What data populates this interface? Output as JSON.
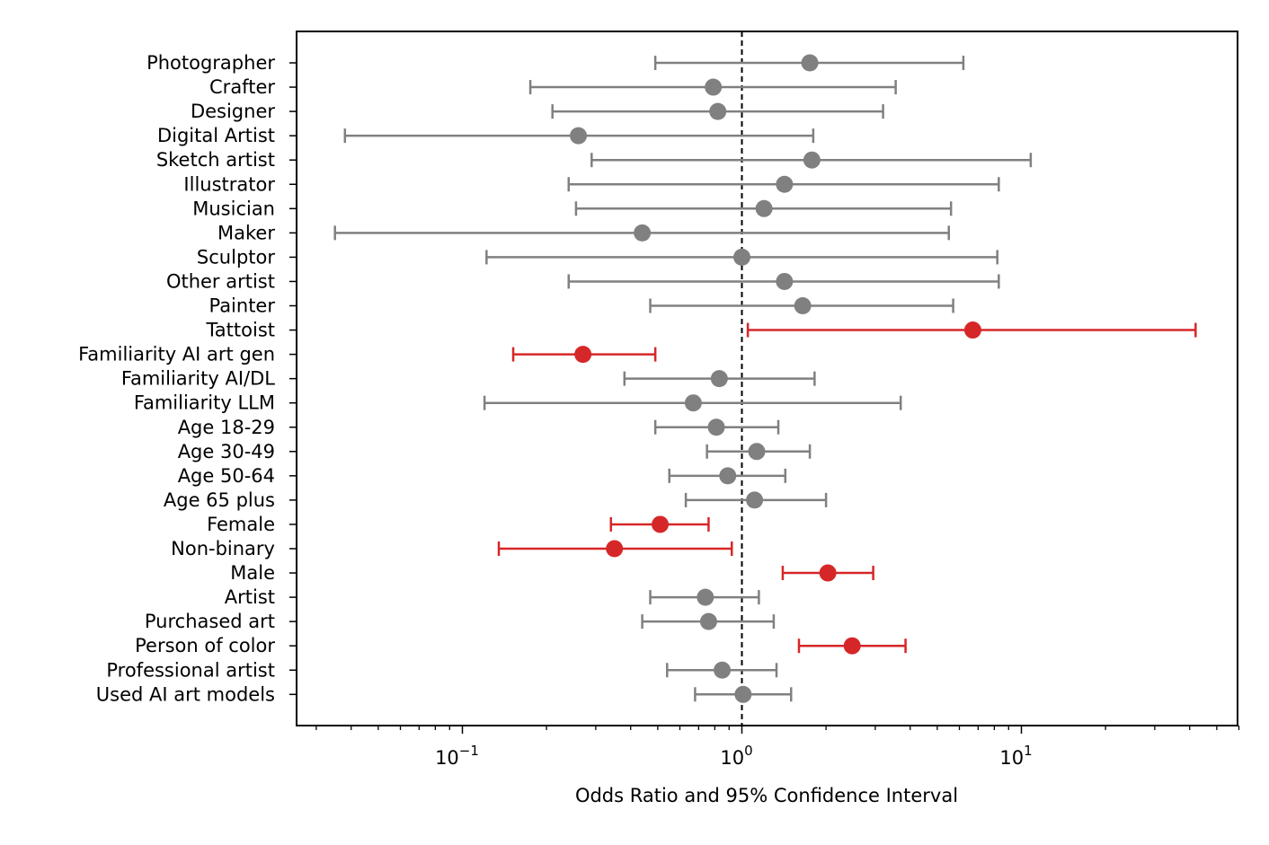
{
  "chart_data": {
    "type": "forest",
    "xlabel": "Odds Ratio and 95% Confidence Interval",
    "xscale": "log",
    "xlim": [
      0.025,
      60
    ],
    "x_ticks": [
      {
        "value": 0.1,
        "base": "10",
        "exp": "−1"
      },
      {
        "value": 1,
        "base": "10",
        "exp": "0"
      },
      {
        "value": 10,
        "base": "10",
        "exp": "1"
      }
    ],
    "reference_line": 1,
    "colors": {
      "not_significant": "#808080",
      "significant": "#d62728"
    },
    "rows": [
      {
        "label": "Photographer",
        "or": 1.75,
        "lo": 0.49,
        "hi": 6.2,
        "significant": false
      },
      {
        "label": "Crafter",
        "or": 0.79,
        "lo": 0.175,
        "hi": 3.55,
        "significant": false
      },
      {
        "label": "Designer",
        "or": 0.82,
        "lo": 0.21,
        "hi": 3.2,
        "significant": false
      },
      {
        "label": "Digital Artist",
        "or": 0.26,
        "lo": 0.038,
        "hi": 1.8,
        "significant": false
      },
      {
        "label": "Sketch artist",
        "or": 1.78,
        "lo": 0.29,
        "hi": 10.8,
        "significant": false
      },
      {
        "label": "Illustrator",
        "or": 1.42,
        "lo": 0.24,
        "hi": 8.3,
        "significant": false
      },
      {
        "label": "Musician",
        "or": 1.2,
        "lo": 0.255,
        "hi": 5.6,
        "significant": false
      },
      {
        "label": "Maker",
        "or": 0.44,
        "lo": 0.035,
        "hi": 5.5,
        "significant": false
      },
      {
        "label": "Sculptor",
        "or": 1.0,
        "lo": 0.122,
        "hi": 8.2,
        "significant": false
      },
      {
        "label": "Other artist",
        "or": 1.42,
        "lo": 0.24,
        "hi": 8.3,
        "significant": false
      },
      {
        "label": "Painter",
        "or": 1.65,
        "lo": 0.47,
        "hi": 5.7,
        "significant": false
      },
      {
        "label": "Tattoist",
        "or": 6.7,
        "lo": 1.05,
        "hi": 42,
        "significant": true
      },
      {
        "label": "Familiarity AI art gen",
        "or": 0.27,
        "lo": 0.152,
        "hi": 0.49,
        "significant": true
      },
      {
        "label": "Familiarity AI/DL",
        "or": 0.83,
        "lo": 0.38,
        "hi": 1.82,
        "significant": false
      },
      {
        "label": "Familiarity LLM",
        "or": 0.67,
        "lo": 0.12,
        "hi": 3.7,
        "significant": false
      },
      {
        "label": "Age 18-29",
        "or": 0.81,
        "lo": 0.49,
        "hi": 1.35,
        "significant": false
      },
      {
        "label": "Age 30-49",
        "or": 1.13,
        "lo": 0.75,
        "hi": 1.75,
        "significant": false
      },
      {
        "label": "Age 50-64",
        "or": 0.89,
        "lo": 0.55,
        "hi": 1.43,
        "significant": false
      },
      {
        "label": "Age 65 plus",
        "or": 1.11,
        "lo": 0.63,
        "hi": 2.0,
        "significant": false
      },
      {
        "label": "Female",
        "or": 0.51,
        "lo": 0.34,
        "hi": 0.76,
        "significant": true
      },
      {
        "label": "Non-binary",
        "or": 0.35,
        "lo": 0.135,
        "hi": 0.92,
        "significant": true
      },
      {
        "label": "Male",
        "or": 2.03,
        "lo": 1.4,
        "hi": 2.95,
        "significant": true
      },
      {
        "label": "Artist",
        "or": 0.74,
        "lo": 0.47,
        "hi": 1.15,
        "significant": false
      },
      {
        "label": "Purchased art",
        "or": 0.76,
        "lo": 0.44,
        "hi": 1.3,
        "significant": false
      },
      {
        "label": "Person of color",
        "or": 2.48,
        "lo": 1.6,
        "hi": 3.85,
        "significant": true
      },
      {
        "label": "Professional artist",
        "or": 0.85,
        "lo": 0.54,
        "hi": 1.33,
        "significant": false
      },
      {
        "label": "Used AI art models",
        "or": 1.01,
        "lo": 0.68,
        "hi": 1.5,
        "significant": false
      }
    ]
  }
}
